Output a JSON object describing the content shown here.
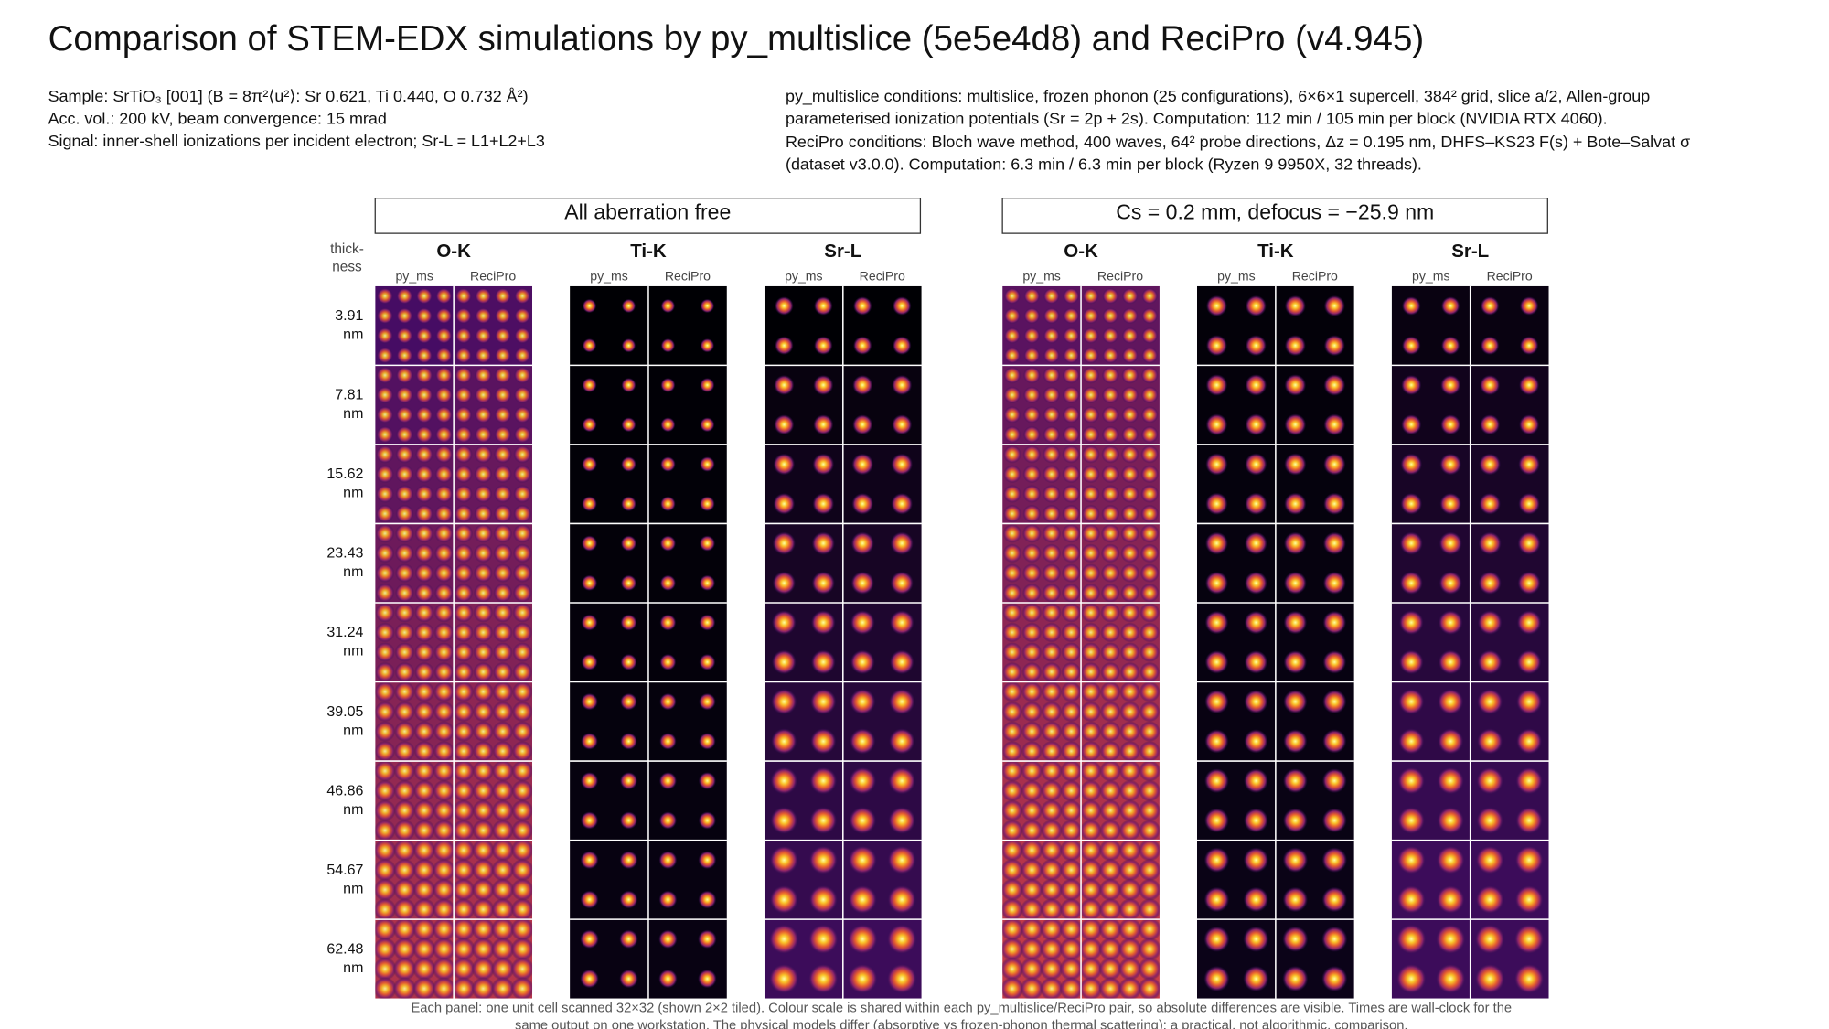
{
  "title": "Comparison of STEM-EDX simulations by py_multislice (5e5e4d8) and ReciPro (v4.945)",
  "sample_info": [
    "Sample: SrTiO₃ [001]  (B = 8π²⟨u²⟩: Sr 0.621, Ti 0.440, O 0.732 Å²)",
    "Acc. vol.: 200 kV,  beam convergence: 15 mrad",
    "Signal: inner-shell ionizations per incident electron; Sr-L = L1+L2+L3"
  ],
  "conditions": [
    "py_multislice conditions: multislice, frozen phonon (25 configurations), 6×6×1 supercell, 384² grid, slice a/2, Allen-group",
    "parameterised ionization potentials (Sr = 2p + 2s). Computation: 112 min / 105 min per block (NVIDIA RTX 4060).",
    "ReciPro conditions: Bloch wave method, 400 waves, 64² probe directions, Δz = 0.195 nm, DHFS–KS23 F(s) + Bote–Salvat σ",
    "(dataset v3.0.0). Computation: 6.3 min / 6.3 min per block (Ryzen 9 9950X, 32 threads)."
  ],
  "thickness_label": [
    "thick-",
    "ness"
  ],
  "thickness_unit": "nm",
  "thicknesses": [
    "3.91",
    "7.81",
    "15.62",
    "23.43",
    "31.24",
    "39.05",
    "46.86",
    "54.67",
    "62.48"
  ],
  "groups": [
    {
      "title": "All aberration free",
      "elements": [
        "O-K",
        "Ti-K",
        "Sr-L"
      ]
    },
    {
      "title": "Cs = 0.2 mm,  defocus = −25.9 nm",
      "elements": [
        "O-K",
        "Ti-K",
        "Sr-L"
      ]
    }
  ],
  "methods": [
    "py_ms",
    "ReciPro"
  ],
  "footer": [
    "Each panel: one unit cell scanned 32×32 (shown 2×2 tiled). Colour scale is shared within each py_multislice/ReciPro pair, so absolute differences are visible. Times are wall-clock for the",
    "same output on one workstation. The physical models differ (absorptive vs frozen-phonon thermal scattering): a practical, not algorithmic, comparison."
  ]
}
